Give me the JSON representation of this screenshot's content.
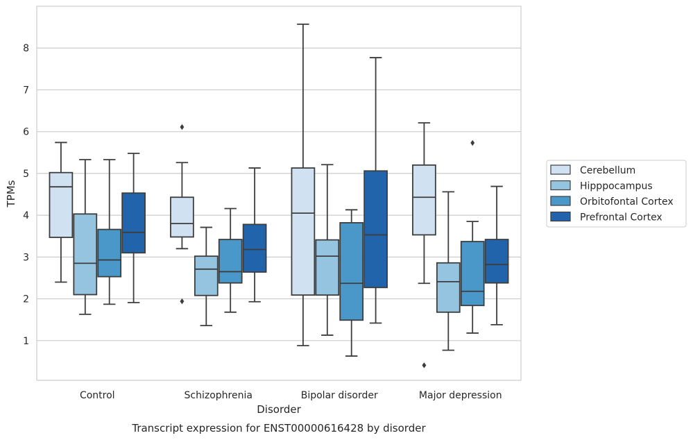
{
  "chart_data": {
    "type": "box",
    "title": "Transcript expression for ENST00000616428 by disorder",
    "xlabel": "Disorder",
    "ylabel": "TPMs",
    "categories": [
      "Control",
      "Schizophrenia",
      "Bipolar disorder",
      "Major depression"
    ],
    "ylim": [
      0.05,
      9.0
    ],
    "yticks": [
      1,
      2,
      3,
      4,
      5,
      6,
      7,
      8
    ],
    "grid": true,
    "legend_position": "right",
    "series": [
      {
        "name": "Cerebellum",
        "color": "#d0e1f2",
        "boxes": [
          {
            "whislo": 2.4,
            "q1": 3.47,
            "med": 4.68,
            "q3": 5.02,
            "whishi": 5.74,
            "fliers": []
          },
          {
            "whislo": 3.2,
            "q1": 3.48,
            "med": 3.8,
            "q3": 4.43,
            "whishi": 5.26,
            "fliers": [
              6.11,
              1.94
            ]
          },
          {
            "whislo": 0.88,
            "q1": 2.09,
            "med": 4.05,
            "q3": 5.13,
            "whishi": 8.57,
            "fliers": []
          },
          {
            "whislo": 2.37,
            "q1": 3.53,
            "med": 4.43,
            "q3": 5.2,
            "whishi": 6.21,
            "fliers": [
              0.41
            ]
          }
        ]
      },
      {
        "name": "Hipppocampus",
        "color": "#94c4df",
        "boxes": [
          {
            "whislo": 1.63,
            "q1": 2.1,
            "med": 2.85,
            "q3": 4.03,
            "whishi": 5.33,
            "fliers": []
          },
          {
            "whislo": 1.36,
            "q1": 2.08,
            "med": 2.71,
            "q3": 3.02,
            "whishi": 3.71,
            "fliers": []
          },
          {
            "whislo": 1.13,
            "q1": 2.09,
            "med": 3.02,
            "q3": 3.41,
            "whishi": 5.21,
            "fliers": []
          },
          {
            "whislo": 0.77,
            "q1": 1.68,
            "med": 2.41,
            "q3": 2.86,
            "whishi": 4.56,
            "fliers": []
          }
        ]
      },
      {
        "name": "Orbitofontal Cortex",
        "color": "#4a98c9",
        "boxes": [
          {
            "whislo": 1.87,
            "q1": 2.53,
            "med": 2.93,
            "q3": 3.66,
            "whishi": 5.33,
            "fliers": []
          },
          {
            "whislo": 1.68,
            "q1": 2.38,
            "med": 2.65,
            "q3": 3.42,
            "whishi": 4.16,
            "fliers": []
          },
          {
            "whislo": 0.63,
            "q1": 1.49,
            "med": 2.37,
            "q3": 3.82,
            "whishi": 4.13,
            "fliers": []
          },
          {
            "whislo": 1.18,
            "q1": 1.84,
            "med": 2.18,
            "q3": 3.37,
            "whishi": 3.85,
            "fliers": [
              5.73
            ]
          }
        ]
      },
      {
        "name": "Prefrontal Cortex",
        "color": "#2164ab",
        "boxes": [
          {
            "whislo": 1.91,
            "q1": 3.1,
            "med": 3.59,
            "q3": 4.53,
            "whishi": 5.48,
            "fliers": []
          },
          {
            "whislo": 1.93,
            "q1": 2.64,
            "med": 3.18,
            "q3": 3.78,
            "whishi": 5.13,
            "fliers": []
          },
          {
            "whislo": 1.42,
            "q1": 2.27,
            "med": 3.53,
            "q3": 5.06,
            "whishi": 7.77,
            "fliers": []
          },
          {
            "whislo": 1.38,
            "q1": 2.38,
            "med": 2.82,
            "q3": 3.42,
            "whishi": 4.69,
            "fliers": []
          }
        ]
      }
    ]
  }
}
